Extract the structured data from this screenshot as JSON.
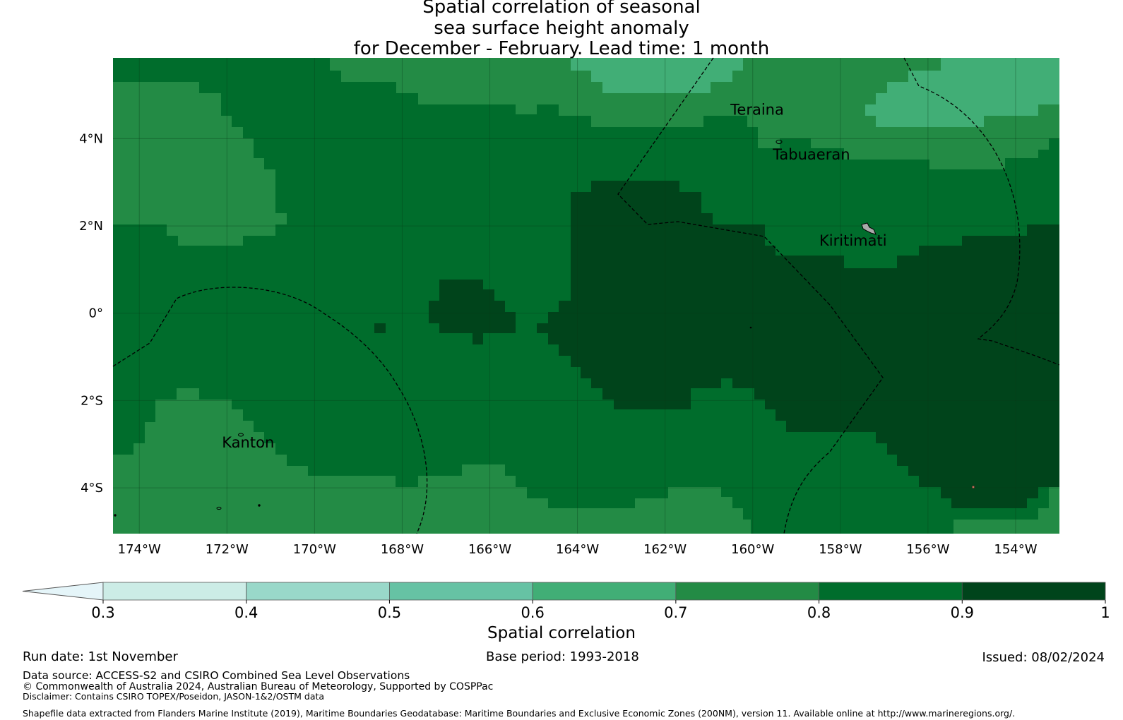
{
  "title": {
    "line1": "Spatial correlation of seasonal",
    "line2": "sea surface height anomaly",
    "line3": "for December - February. Lead time: 1 month"
  },
  "axes": {
    "lat_labels": [
      "4°N",
      "2°N",
      "0°",
      "2°S",
      "4°S"
    ],
    "lat_values": [
      4,
      2,
      0,
      -2,
      -4
    ],
    "lon_labels": [
      "174°W",
      "172°W",
      "170°W",
      "168°W",
      "166°W",
      "164°W",
      "162°W",
      "160°W",
      "158°W",
      "156°W",
      "154°W"
    ],
    "lon_values": [
      -174,
      -172,
      -170,
      -168,
      -166,
      -164,
      -162,
      -160,
      -158,
      -156,
      -154
    ],
    "lon_range": [
      -174.6,
      -153.0
    ],
    "lat_range": [
      -5.05,
      5.85
    ]
  },
  "places": [
    {
      "name": "Teraina",
      "label": "Teraina",
      "lon": -160.38,
      "lat": 4.68
    },
    {
      "name": "Tabuaeran",
      "label": "Tabuaeran",
      "lon": -159.35,
      "lat": 3.86
    },
    {
      "name": "Kiritimati",
      "label": "Kiritimati",
      "lon": -157.4,
      "lat": 1.87
    },
    {
      "name": "Kanton",
      "label": "Kanton",
      "lon": -171.71,
      "lat": -2.8
    }
  ],
  "colorbar": {
    "ticks": [
      "0.3",
      "0.4",
      "0.5",
      "0.6",
      "0.7",
      "0.8",
      "0.9",
      "1"
    ],
    "bounds": [
      0.3,
      0.4,
      0.5,
      0.6,
      0.7,
      0.8,
      0.9,
      1.0
    ],
    "colors": [
      "#ccece6",
      "#99d8c9",
      "#66c2a4",
      "#41ae76",
      "#238b45",
      "#006d2c",
      "#00441b"
    ],
    "under_color": "#e5f5f9",
    "label": "Spatial correlation"
  },
  "footer": {
    "run_date": "Run date: 1st November",
    "base_period": "Base period: 1993-2018",
    "issued": "Issued: 08/02/2024",
    "data_source": "Data source: ACCESS-S2 and CSIRO Combined Sea Level Observations",
    "copyright": "© Commonwealth of Australia 2024, Australian Bureau of Meteorology, Supported by COSPPac",
    "disclaimer": "Disclaimer: Contains CSIRO TOPEX/Poseidon, JASON-1&2/OSTM data",
    "shapefile": "Shapefile data extracted from Flanders Marine Institute (2019), Maritime Boundaries Geodatabase: Maritime Boundaries and Exclusive Economic Zones (200NM), version 11. Available online at http://www.marineregions.org/."
  }
}
